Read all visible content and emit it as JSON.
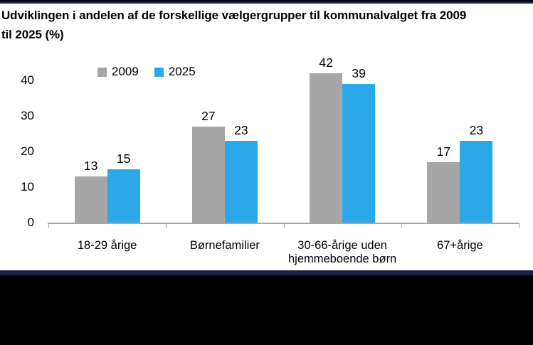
{
  "page": {
    "background": "#ffffff",
    "top_border_black": "#000000",
    "top_border_navy": "#1a2148",
    "bottom_stripe_navy": "#1a2148",
    "bottom_band_black": "#000000"
  },
  "chart_data": {
    "type": "bar",
    "title": "Udviklingen i andelen af de forskellige vælgergrupper til kommunalvalget fra 2009 til 2025 (%)",
    "title_lines": [
      "Udviklingen i andelen af de forskellige vælgergrupper til kommunalvalget fra 2009",
      "til 2025 (%)"
    ],
    "categories": [
      "18-29 årige",
      "Børnefamilier",
      "30-66-årige uden hjemmeboende børn",
      "67+årige"
    ],
    "series": [
      {
        "name": "2009",
        "values": [
          13,
          27,
          42,
          17
        ],
        "color": "#a6a6a6"
      },
      {
        "name": "2025",
        "values": [
          15,
          23,
          39,
          23
        ],
        "color": "#2aa8e8"
      }
    ],
    "value_labels": true,
    "yticks": [
      0,
      10,
      20,
      30,
      40
    ],
    "ylim": [
      0,
      44
    ],
    "xlabel": "",
    "ylabel": "",
    "grid": false,
    "legend_position": "top-left",
    "axis_color": "#a6a6a6",
    "text_color": "#000000"
  }
}
